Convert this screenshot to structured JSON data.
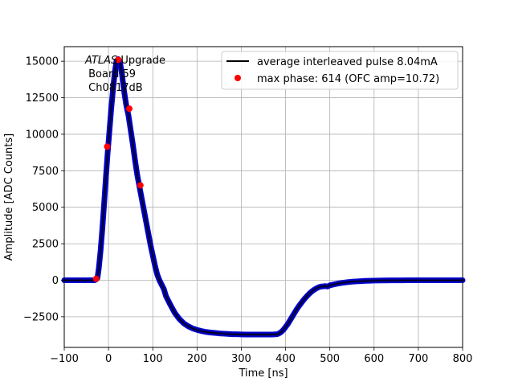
{
  "chart_data": {
    "type": "scatter",
    "xlabel": "Time [ns]",
    "ylabel": "Amplitude [ADC Counts]",
    "xlim": [
      -100,
      800
    ],
    "ylim": [
      -4600,
      16000
    ],
    "xticks": [
      -100,
      0,
      100,
      200,
      300,
      400,
      500,
      600,
      700,
      800
    ],
    "yticks": [
      -2500,
      0,
      2500,
      5000,
      7500,
      10000,
      12500,
      15000
    ],
    "xtick_labels": [
      "−100",
      "0",
      "100",
      "200",
      "300",
      "400",
      "500",
      "600",
      "700",
      "800"
    ],
    "ytick_labels": [
      "−2500",
      "0",
      "2500",
      "5000",
      "7500",
      "10000",
      "12500",
      "15000"
    ],
    "grid": true,
    "legend_placement": "top-right",
    "annotation": {
      "lines": [
        "ATLAS Upgrade",
        " Board 59",
        " Ch0817dB"
      ],
      "italic_word": "ATLAS",
      "rest_of_first_line": " Upgrade"
    },
    "series": [
      {
        "name": "average interleaved pulse 8.04mA",
        "kind": "line",
        "color": "#000000",
        "marker_color": "#00008b",
        "edge_color": "#0000cd",
        "x": [
          -100,
          -40,
          -32,
          -28,
          -25,
          -22,
          -18,
          -14,
          -10,
          -6,
          -2,
          2,
          6,
          10,
          14,
          18,
          22,
          26,
          30,
          35,
          40,
          45,
          50,
          55,
          60,
          65,
          70,
          75,
          80,
          85,
          90,
          95,
          100,
          105,
          110,
          115,
          120,
          125,
          130,
          140,
          150,
          160,
          170,
          180,
          190,
          200,
          210,
          220,
          230,
          240,
          250,
          260,
          270,
          280,
          290,
          300,
          310,
          320,
          330,
          340,
          350,
          360,
          370,
          380,
          385,
          390,
          395,
          400,
          405,
          410,
          415,
          420,
          425,
          430,
          435,
          440,
          445,
          450,
          455,
          460,
          465,
          470,
          475,
          480,
          485,
          490,
          495,
          500,
          510,
          520,
          530,
          540,
          550,
          560,
          570,
          580,
          590,
          600,
          620,
          640,
          660,
          680,
          700,
          720,
          740,
          760,
          780,
          800
        ],
        "y": [
          0,
          0,
          0,
          50,
          150,
          800,
          2000,
          3500,
          5200,
          7000,
          8700,
          10200,
          11700,
          13000,
          14200,
          15000,
          15150,
          14900,
          14200,
          13000,
          12000,
          11300,
          10300,
          9300,
          8200,
          7200,
          6400,
          5600,
          4800,
          4000,
          3200,
          2400,
          1700,
          1000,
          400,
          0,
          -300,
          -600,
          -1100,
          -1700,
          -2250,
          -2650,
          -2950,
          -3150,
          -3300,
          -3400,
          -3480,
          -3540,
          -3580,
          -3610,
          -3640,
          -3660,
          -3680,
          -3700,
          -3700,
          -3710,
          -3720,
          -3720,
          -3720,
          -3720,
          -3720,
          -3720,
          -3720,
          -3700,
          -3650,
          -3550,
          -3400,
          -3200,
          -3000,
          -2750,
          -2500,
          -2250,
          -2000,
          -1780,
          -1580,
          -1380,
          -1200,
          -1030,
          -880,
          -750,
          -640,
          -550,
          -480,
          -430,
          -420,
          -400,
          -430,
          -350,
          -280,
          -220,
          -170,
          -130,
          -100,
          -80,
          -60,
          -45,
          -35,
          -25,
          -15,
          -10,
          -5,
          0,
          0,
          0,
          0,
          0,
          0,
          0
        ]
      },
      {
        "name": "max phase: 614 (OFC amp=10.72)",
        "kind": "scatter",
        "color": "#ff0000",
        "x": [
          -28,
          -3,
          22,
          47,
          72
        ],
        "y": [
          100,
          9150,
          15100,
          11750,
          6500
        ]
      }
    ]
  }
}
